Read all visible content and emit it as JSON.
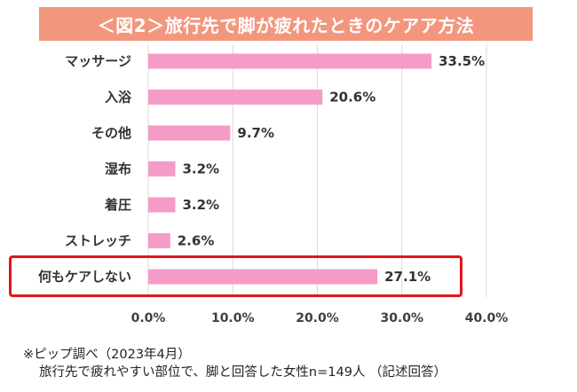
{
  "title": "＜図2＞旅行先で脚が疲れたときのケアア方法",
  "chart_data": {
    "type": "bar",
    "orientation": "horizontal",
    "categories": [
      "マッサージ",
      "入浴",
      "その他",
      "湿布",
      "着圧",
      "ストレッチ",
      "何もケアしない"
    ],
    "values": [
      33.5,
      20.6,
      9.7,
      3.2,
      3.2,
      2.6,
      27.1
    ],
    "value_labels": [
      "33.5%",
      "20.6%",
      "9.7%",
      "3.2%",
      "3.2%",
      "2.6%",
      "27.1%"
    ],
    "xlim": [
      0,
      40
    ],
    "xticks": [
      0,
      10,
      20,
      30,
      40
    ],
    "xtick_labels": [
      "0.0%",
      "10.0%",
      "20.0%",
      "30.0%",
      "40.0%"
    ],
    "bar_color": "#f59bc8",
    "gridlines": true,
    "highlighted_category": "何もケアしない",
    "highlight_color": "#e0161c"
  },
  "notes": {
    "line1": "※ピップ調べ（2023年4月）",
    "line2": "旅行先で疲れやすい部位で、脚と回答した女性n=149人 （記述回答）"
  },
  "colors": {
    "title_bg": "#f3967e",
    "grid": "#d9d9d9"
  }
}
